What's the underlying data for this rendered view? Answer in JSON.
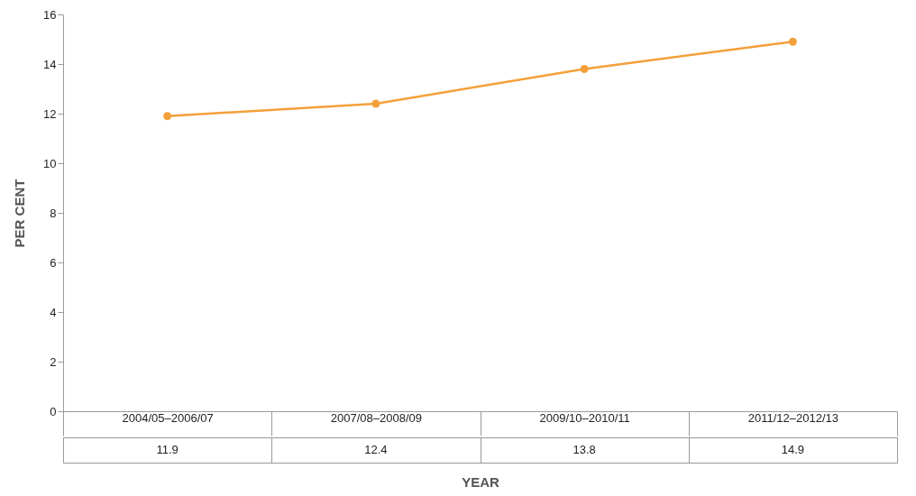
{
  "chart_data": {
    "type": "line",
    "xlabel": "YEAR",
    "ylabel": "PER CENT",
    "categories": [
      "2004/05–2006/07",
      "2007/08–2008/09",
      "2009/10–2010/11",
      "2011/12–2012/13"
    ],
    "series": [
      {
        "color": "#f4a03a",
        "values": [
          11.9,
          12.4,
          13.8,
          14.9
        ]
      }
    ],
    "ylim": [
      0,
      16
    ],
    "yticks": [
      0,
      2,
      4,
      6,
      8,
      10,
      12,
      14,
      16
    ],
    "marker": "circle",
    "data_labels": true
  }
}
